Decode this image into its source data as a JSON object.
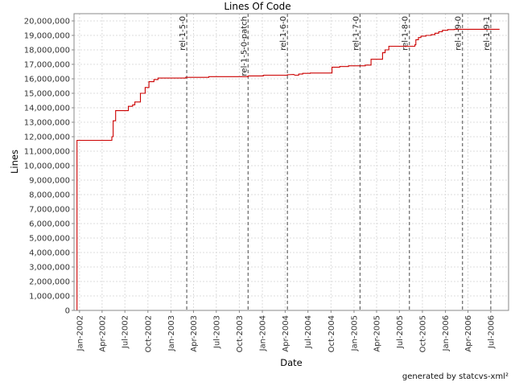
{
  "chart_data": {
    "type": "line",
    "title": "Lines Of Code",
    "xlabel": "Date",
    "ylabel": "Lines",
    "ylim": [
      0,
      20500000
    ],
    "xlim": [
      "2001-12-10",
      "2006-09-10"
    ],
    "x_ticks": [
      "Jan-2002",
      "Apr-2002",
      "Jul-2002",
      "Oct-2002",
      "Jan-2003",
      "Apr-2003",
      "Jul-2003",
      "Oct-2003",
      "Jan-2004",
      "Apr-2004",
      "Jul-2004",
      "Oct-2004",
      "Jan-2005",
      "Apr-2005",
      "Jul-2005",
      "Oct-2005",
      "Jan-2006",
      "Apr-2006",
      "Jul-2006"
    ],
    "y_ticks": [
      "0",
      "1,000,000",
      "2,000,000",
      "3,000,000",
      "4,000,000",
      "5,000,000",
      "6,000,000",
      "7,000,000",
      "8,000,000",
      "9,000,000",
      "10,000,000",
      "11,000,000",
      "12,000,000",
      "13,000,000",
      "14,000,000",
      "15,000,000",
      "16,000,000",
      "17,000,000",
      "18,000,000",
      "19,000,000",
      "20,000,000"
    ],
    "grid": true,
    "line_color": "#cc0000",
    "releases": [
      {
        "label": "rel-1-5-0",
        "date": "2003-03-05"
      },
      {
        "label": "rel-1-5-0-patch",
        "date": "2003-11-05"
      },
      {
        "label": "rel-1-6-0",
        "date": "2004-04-10"
      },
      {
        "label": "rel-1-7-0",
        "date": "2005-01-25"
      },
      {
        "label": "rel-1-8-0",
        "date": "2005-08-10"
      },
      {
        "label": "rel-1-9-0",
        "date": "2006-03-10"
      },
      {
        "label": "rel-1-9-1",
        "date": "2006-07-01"
      }
    ],
    "series": [
      {
        "x": [
          "2001-12-22",
          "2001-12-22",
          "2002-05-10",
          "2002-05-10",
          "2002-05-15",
          "2002-05-15",
          "2002-05-25",
          "2002-05-25",
          "2002-07-15",
          "2002-07-15",
          "2002-08-01",
          "2002-08-01",
          "2002-08-10",
          "2002-08-10",
          "2002-09-01",
          "2002-09-01",
          "2002-09-20",
          "2002-09-20",
          "2002-10-05",
          "2002-10-05",
          "2002-10-25",
          "2002-10-25",
          "2002-11-10",
          "2002-11-10",
          "2003-03-01",
          "2003-03-01",
          "2003-06-01",
          "2003-06-01",
          "2003-11-05",
          "2003-11-05",
          "2004-01-05",
          "2004-01-05",
          "2004-04-10",
          "2004-04-10",
          "2004-05-05",
          "2004-05-10",
          "2004-05-25",
          "2004-05-25",
          "2004-06-10",
          "2004-06-10",
          "2004-07-10",
          "2004-07-10",
          "2004-10-05",
          "2004-10-05",
          "2004-11-05",
          "2004-11-05",
          "2004-12-10",
          "2004-12-10",
          "2005-02-15",
          "2005-02-15",
          "2005-03-10",
          "2005-03-10",
          "2005-04-25",
          "2005-04-25",
          "2005-05-05",
          "2005-05-05",
          "2005-05-20",
          "2005-05-20",
          "2005-09-01",
          "2005-09-01",
          "2005-09-05",
          "2005-09-05",
          "2005-09-15",
          "2005-09-15",
          "2005-09-25",
          "2005-09-25",
          "2005-10-15",
          "2005-10-15",
          "2005-11-05",
          "2005-11-05",
          "2005-11-20",
          "2005-11-20",
          "2005-12-05",
          "2005-12-05",
          "2005-12-20",
          "2005-12-20",
          "2006-01-10",
          "2006-01-10",
          "2006-02-05",
          "2006-02-05",
          "2006-08-05"
        ],
        "values": [
          0,
          11750000,
          11750000,
          12000000,
          12000000,
          13100000,
          13100000,
          13800000,
          13800000,
          14100000,
          14100000,
          14200000,
          14200000,
          14400000,
          14400000,
          15000000,
          15000000,
          15400000,
          15400000,
          15800000,
          15800000,
          15950000,
          15950000,
          16050000,
          16050000,
          16100000,
          16100000,
          16150000,
          16150000,
          16200000,
          16200000,
          16250000,
          16250000,
          16280000,
          16300000,
          16250000,
          16250000,
          16330000,
          16330000,
          16380000,
          16380000,
          16400000,
          16400000,
          16800000,
          16800000,
          16850000,
          16850000,
          16900000,
          16900000,
          16950000,
          16950000,
          17350000,
          17350000,
          17800000,
          17800000,
          18000000,
          18000000,
          18250000,
          18250000,
          18350000,
          18350000,
          18700000,
          18700000,
          18850000,
          18850000,
          18950000,
          18950000,
          19000000,
          19000000,
          19050000,
          19050000,
          19150000,
          19150000,
          19250000,
          19250000,
          19350000,
          19350000,
          19400000,
          19400000,
          19420000,
          19420000
        ]
      }
    ]
  },
  "footer": {
    "credit": "generated by statcvs-xml²"
  }
}
